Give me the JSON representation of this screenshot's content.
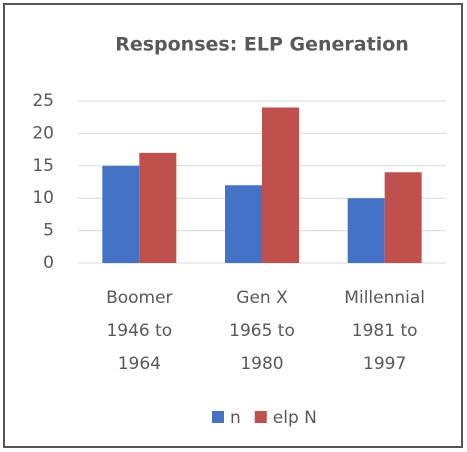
{
  "chart_data": {
    "type": "bar",
    "title": "Responses: ELP Generation",
    "categories": [
      [
        "Boomer",
        "1946 to",
        "1964"
      ],
      [
        "Gen X",
        "1965 to",
        "1980"
      ],
      [
        "Millennial",
        "1981 to",
        "1997"
      ]
    ],
    "series": [
      {
        "name": "n",
        "color": "#4472c4",
        "values": [
          15,
          12,
          10
        ]
      },
      {
        "name": "elp N",
        "color": "#c0504d",
        "values": [
          17,
          24,
          14
        ]
      }
    ],
    "ylim": [
      0,
      25
    ],
    "yticks": [
      0,
      5,
      10,
      15,
      20,
      25
    ],
    "grid": true,
    "legend": "bottom"
  }
}
